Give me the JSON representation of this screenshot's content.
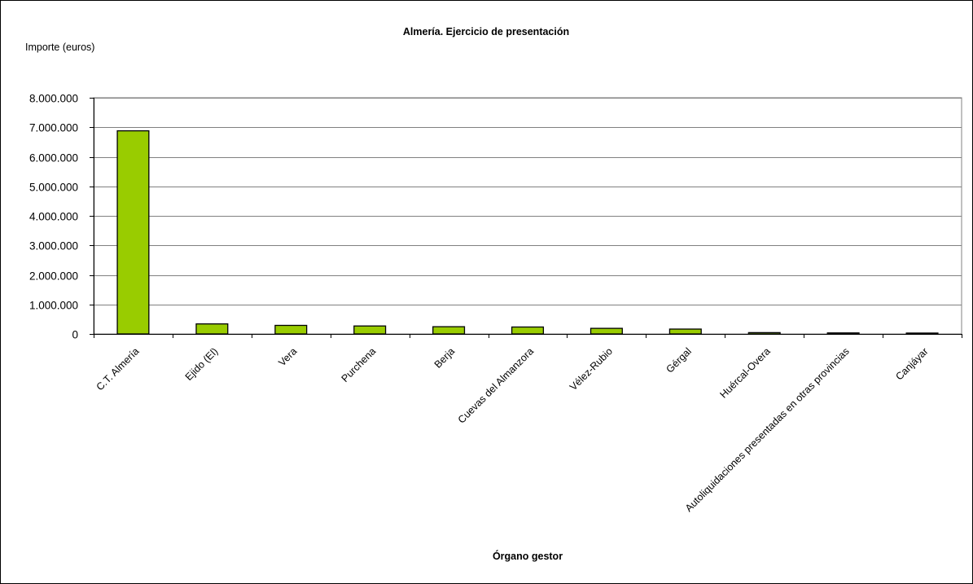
{
  "chart_data": {
    "type": "bar",
    "title": "Almería. Ejercicio de presentación",
    "ylabel": "Importe (euros)",
    "xlabel": "Órgano gestor",
    "categories": [
      "C.T. Almería",
      "Ejido (El)",
      "Vera",
      "Purchena",
      "Berja",
      "Cuevas del Almanzora",
      "Vélez-Rubio",
      "Gérgal",
      "Huércal-Overa",
      "Autoliquidaciones presentadas en otras provincias",
      "Canjáyar"
    ],
    "values": [
      6880000,
      340000,
      290000,
      270000,
      245000,
      235000,
      190000,
      165000,
      45000,
      35000,
      30000
    ],
    "ylim": [
      0,
      8000000
    ],
    "yticks": [
      0,
      1000000,
      2000000,
      3000000,
      4000000,
      5000000,
      6000000,
      7000000,
      8000000
    ],
    "ytick_labels": [
      "0",
      "1.000.000",
      "2.000.000",
      "3.000.000",
      "4.000.000",
      "5.000.000",
      "6.000.000",
      "7.000.000",
      "8.000.000"
    ],
    "grid": true,
    "legend": "none",
    "bar_color": "#99cc00",
    "bar_edge_color": "#000000",
    "grid_color": "#808080"
  }
}
